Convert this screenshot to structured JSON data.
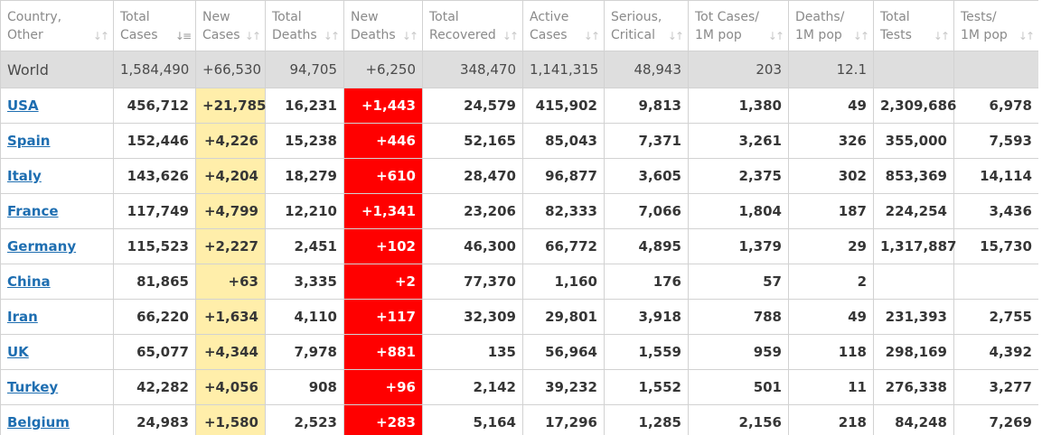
{
  "table": {
    "headers": [
      {
        "l1": "Country,",
        "l2": "Other",
        "sort": "↓↑"
      },
      {
        "l1": "Total",
        "l2": "Cases",
        "sort": "↓≡"
      },
      {
        "l1": "New",
        "l2": "Cases",
        "sort": "↓↑"
      },
      {
        "l1": "Total",
        "l2": "Deaths",
        "sort": "↓↑"
      },
      {
        "l1": "New",
        "l2": "Deaths",
        "sort": "↓↑"
      },
      {
        "l1": "Total",
        "l2": "Recovered",
        "sort": "↓↑"
      },
      {
        "l1": "Active",
        "l2": "Cases",
        "sort": "↓↑"
      },
      {
        "l1": "Serious,",
        "l2": "Critical",
        "sort": "↓↑"
      },
      {
        "l1": "Tot Cases/",
        "l2": "1M pop",
        "sort": "↓↑"
      },
      {
        "l1": "Deaths/",
        "l2": "1M pop",
        "sort": "↓↑"
      },
      {
        "l1": "Total",
        "l2": "Tests",
        "sort": "↓↑"
      },
      {
        "l1": "Tests/",
        "l2": "1M pop",
        "sort": "↓↑"
      }
    ],
    "world": [
      "World",
      "1,584,490",
      "+66,530",
      "94,705",
      "+6,250",
      "348,470",
      "1,141,315",
      "48,943",
      "203",
      "12.1",
      "",
      ""
    ],
    "rows": [
      [
        "USA",
        "456,712",
        "+21,785",
        "16,231",
        "+1,443",
        "24,579",
        "415,902",
        "9,813",
        "1,380",
        "49",
        "2,309,686",
        "6,978"
      ],
      [
        "Spain",
        "152,446",
        "+4,226",
        "15,238",
        "+446",
        "52,165",
        "85,043",
        "7,371",
        "3,261",
        "326",
        "355,000",
        "7,593"
      ],
      [
        "Italy",
        "143,626",
        "+4,204",
        "18,279",
        "+610",
        "28,470",
        "96,877",
        "3,605",
        "2,375",
        "302",
        "853,369",
        "14,114"
      ],
      [
        "France",
        "117,749",
        "+4,799",
        "12,210",
        "+1,341",
        "23,206",
        "82,333",
        "7,066",
        "1,804",
        "187",
        "224,254",
        "3,436"
      ],
      [
        "Germany",
        "115,523",
        "+2,227",
        "2,451",
        "+102",
        "46,300",
        "66,772",
        "4,895",
        "1,379",
        "29",
        "1,317,887",
        "15,730"
      ],
      [
        "China",
        "81,865",
        "+63",
        "3,335",
        "+2",
        "77,370",
        "1,160",
        "176",
        "57",
        "2",
        "",
        ""
      ],
      [
        "Iran",
        "66,220",
        "+1,634",
        "4,110",
        "+117",
        "32,309",
        "29,801",
        "3,918",
        "788",
        "49",
        "231,393",
        "2,755"
      ],
      [
        "UK",
        "65,077",
        "+4,344",
        "7,978",
        "+881",
        "135",
        "56,964",
        "1,559",
        "959",
        "118",
        "298,169",
        "4,392"
      ],
      [
        "Turkey",
        "42,282",
        "+4,056",
        "908",
        "+96",
        "2,142",
        "39,232",
        "1,552",
        "501",
        "11",
        "276,338",
        "3,277"
      ],
      [
        "Belgium",
        "24,983",
        "+1,580",
        "2,523",
        "+283",
        "5,164",
        "17,296",
        "1,285",
        "2,156",
        "218",
        "84,248",
        "7,269"
      ]
    ]
  },
  "colors": {
    "link": "#1e6eb1",
    "new_cases_bg": "#ffeeaa",
    "new_deaths_bg": "#ff0000",
    "world_bg": "#dedede",
    "header_text": "#8a8a8a"
  }
}
